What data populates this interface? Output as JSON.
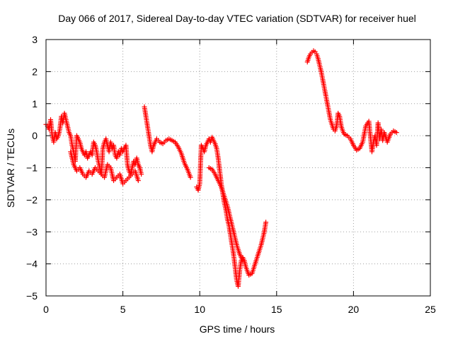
{
  "chart_data": {
    "type": "scatter",
    "title": "Day 066 of 2017, Sidereal Day-to-day VTEC variation (SDTVAR) for receiver huel",
    "xlabel": "GPS time / hours",
    "ylabel": "SDTVAR / TECUs",
    "xlim": [
      0,
      25
    ],
    "ylim": [
      -5,
      3
    ],
    "xticks": [
      0,
      5,
      10,
      15,
      20,
      25
    ],
    "yticks": [
      -5,
      -4,
      -3,
      -2,
      -1,
      0,
      1,
      2,
      3
    ],
    "grid": true,
    "marker": "plus",
    "color": "#ff0000",
    "series": [
      {
        "name": "SDTVAR",
        "segments": [
          {
            "x": [
              0.0,
              0.1,
              0.2,
              0.3,
              0.4,
              0.5,
              0.6,
              0.7,
              0.8,
              0.9,
              1.0,
              1.1,
              1.2,
              1.3,
              1.4,
              1.5,
              1.6,
              1.7,
              1.8,
              1.9,
              2.0,
              2.1,
              2.2,
              2.3,
              2.4,
              2.5,
              2.6,
              2.7,
              2.8,
              2.9,
              3.0,
              3.1,
              3.2,
              3.3,
              3.4,
              3.5,
              3.6,
              3.7,
              3.8,
              3.9,
              4.0,
              4.1,
              4.2,
              4.3,
              4.4,
              4.5,
              4.6,
              4.7,
              4.8,
              4.9,
              5.0,
              5.1,
              5.2,
              5.3,
              5.4,
              5.5,
              5.6,
              5.7,
              5.8,
              5.9,
              6.0,
              6.1,
              6.2
            ],
            "y": [
              0.35,
              0.3,
              0.2,
              0.5,
              0.0,
              -0.2,
              0.1,
              -0.1,
              0.0,
              0.2,
              0.6,
              0.4,
              0.7,
              0.5,
              0.3,
              0.1,
              0.0,
              -0.3,
              -0.5,
              -0.8,
              0.0,
              -0.1,
              -0.2,
              -0.4,
              -0.5,
              -0.6,
              -0.5,
              -0.7,
              -0.6,
              -0.5,
              -0.6,
              -0.2,
              -0.3,
              -0.5,
              -0.8,
              -1.0,
              -1.2,
              -0.4,
              -0.2,
              -0.1,
              -0.3,
              -0.5,
              -0.2,
              -0.4,
              -0.3,
              -0.6,
              -0.7,
              -0.5,
              -0.6,
              -0.4,
              -0.5,
              -0.4,
              -0.3,
              -0.9,
              -1.1,
              -1.2,
              -1.0,
              -0.8,
              -0.9,
              -0.7,
              -0.9,
              -1.0,
              -1.2
            ]
          },
          {
            "x": [
              1.6,
              1.8,
              2.0,
              2.2,
              2.4,
              2.6,
              2.8,
              3.0,
              3.2,
              3.4,
              3.6,
              3.8,
              4.0,
              4.2,
              4.4,
              4.6,
              4.8,
              5.0,
              5.2,
              5.4,
              5.6,
              5.8,
              6.0
            ],
            "y": [
              -0.5,
              -0.9,
              -1.1,
              -1.0,
              -1.2,
              -1.3,
              -1.1,
              -1.2,
              -1.0,
              -1.1,
              -1.2,
              -1.3,
              -0.9,
              -1.0,
              -1.4,
              -1.3,
              -1.2,
              -1.5,
              -1.4,
              -1.3,
              -1.2,
              -1.1,
              -1.4
            ]
          },
          {
            "x": [
              6.4,
              6.5,
              6.6,
              6.7,
              6.8,
              6.9,
              7.0,
              7.2,
              7.4,
              7.6,
              7.8,
              8.0,
              8.2,
              8.4,
              8.6,
              8.8,
              9.0,
              9.2,
              9.4
            ],
            "y": [
              0.9,
              0.6,
              0.3,
              0.0,
              -0.3,
              -0.5,
              -0.3,
              -0.1,
              -0.2,
              -0.25,
              -0.15,
              -0.1,
              -0.15,
              -0.2,
              -0.35,
              -0.55,
              -0.85,
              -1.05,
              -1.3
            ]
          },
          {
            "x": [
              9.8,
              9.9,
              10.0,
              10.1,
              10.2,
              10.3,
              10.4,
              10.5,
              10.6,
              10.7,
              10.8,
              10.9,
              11.0,
              11.1,
              11.2,
              11.3,
              11.4,
              11.5,
              11.6,
              11.7,
              11.8,
              11.9,
              12.0,
              12.1,
              12.2,
              12.3,
              12.4,
              12.5,
              12.6,
              12.7,
              12.8,
              12.9,
              13.0,
              13.2,
              13.4,
              13.6,
              13.8,
              14.0,
              14.2,
              14.3
            ],
            "y": [
              -1.6,
              -1.7,
              -1.5,
              -0.3,
              -0.4,
              -0.5,
              -0.3,
              -0.2,
              -0.1,
              -0.2,
              -0.05,
              -0.15,
              -0.25,
              -0.4,
              -0.7,
              -1.1,
              -1.5,
              -1.8,
              -2.1,
              -2.3,
              -2.6,
              -2.8,
              -3.1,
              -3.4,
              -3.7,
              -4.1,
              -4.5,
              -4.7,
              -4.2,
              -3.9,
              -3.8,
              -3.9,
              -4.1,
              -4.35,
              -4.3,
              -4.0,
              -3.7,
              -3.4,
              -3.0,
              -2.7
            ]
          },
          {
            "x": [
              10.6,
              10.8,
              11.0,
              11.2,
              11.4,
              11.6,
              11.8,
              12.0,
              12.2,
              12.4,
              12.6,
              12.8
            ],
            "y": [
              -1.0,
              -1.05,
              -1.2,
              -1.4,
              -1.6,
              -1.9,
              -2.2,
              -2.6,
              -3.0,
              -3.4,
              -3.7,
              -3.9
            ]
          },
          {
            "x": [
              17.0,
              17.1,
              17.2,
              17.3,
              17.4,
              17.5,
              17.6,
              17.7,
              17.8,
              17.9,
              18.0,
              18.1,
              18.2,
              18.3,
              18.4,
              18.5,
              18.6,
              18.7,
              18.8,
              18.9,
              19.0,
              19.1,
              19.2,
              19.3,
              19.4,
              19.6,
              19.8,
              20.0,
              20.2,
              20.4,
              20.6,
              20.8,
              21.0,
              21.2,
              21.3,
              21.4,
              21.5,
              21.6,
              21.7,
              21.8,
              21.9,
              22.0,
              22.2,
              22.4,
              22.6,
              22.8
            ],
            "y": [
              2.3,
              2.45,
              2.55,
              2.6,
              2.65,
              2.62,
              2.55,
              2.4,
              2.2,
              2.0,
              1.75,
              1.5,
              1.25,
              1.0,
              0.75,
              0.5,
              0.35,
              0.2,
              0.15,
              0.3,
              0.7,
              0.6,
              0.3,
              0.15,
              0.05,
              0.0,
              -0.1,
              -0.3,
              -0.45,
              -0.4,
              -0.2,
              0.3,
              0.45,
              -0.5,
              -0.2,
              0.0,
              -0.3,
              0.4,
              -0.1,
              0.2,
              -0.15,
              0.1,
              -0.2,
              0.05,
              0.15,
              0.1
            ]
          }
        ]
      }
    ]
  }
}
